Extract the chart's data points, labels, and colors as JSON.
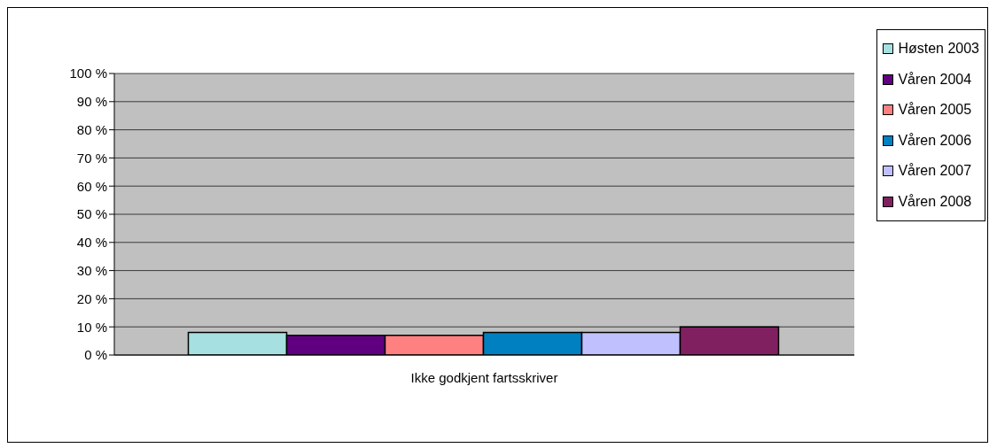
{
  "chart_data": {
    "type": "bar",
    "categories": [
      "Ikke godkjent fartsskriver"
    ],
    "series": [
      {
        "name": "Høsten 2003",
        "color": "#a6e0e0",
        "values": [
          8
        ]
      },
      {
        "name": "Våren 2004",
        "color": "#600080",
        "values": [
          7
        ]
      },
      {
        "name": "Våren 2005",
        "color": "#ff8080",
        "values": [
          7
        ]
      },
      {
        "name": "Våren 2006",
        "color": "#0080c0",
        "values": [
          8
        ]
      },
      {
        "name": "Våren 2007",
        "color": "#c0c0ff",
        "values": [
          8
        ]
      },
      {
        "name": "Våren 2008",
        "color": "#802060",
        "values": [
          10
        ]
      }
    ],
    "ylim": [
      0,
      100
    ],
    "yticks": [
      {
        "value": 0,
        "label": "0 %"
      },
      {
        "value": 10,
        "label": "10 %"
      },
      {
        "value": 20,
        "label": "20 %"
      },
      {
        "value": 30,
        "label": "30 %"
      },
      {
        "value": 40,
        "label": "40 %"
      },
      {
        "value": 50,
        "label": "50 %"
      },
      {
        "value": 60,
        "label": "60 %"
      },
      {
        "value": 70,
        "label": "70 %"
      },
      {
        "value": 80,
        "label": "80 %"
      },
      {
        "value": 90,
        "label": "90 %"
      },
      {
        "value": 100,
        "label": "100 %"
      }
    ],
    "grid": "y",
    "legend": "right"
  }
}
